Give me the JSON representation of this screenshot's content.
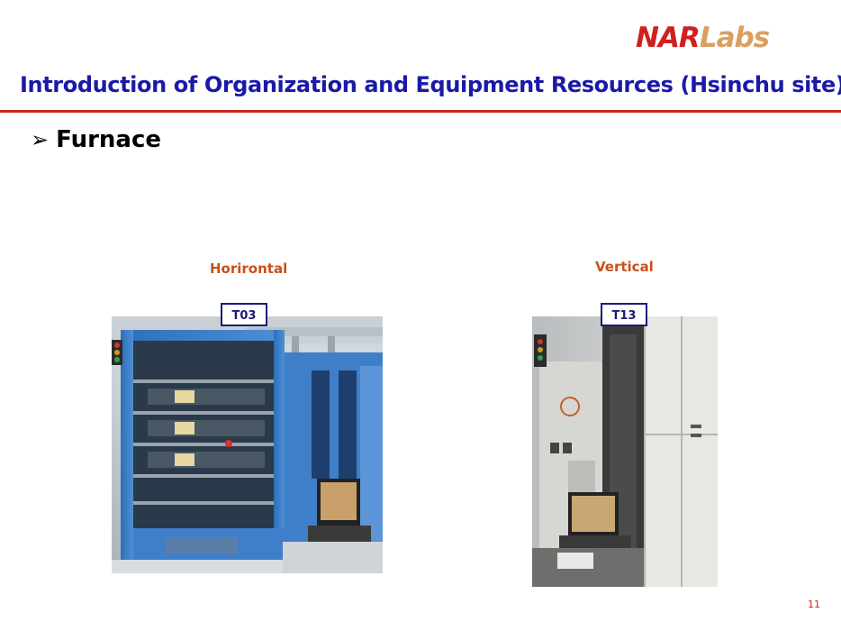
{
  "logo": {
    "part1": "NAR",
    "part2": "Labs"
  },
  "header": {
    "title": "Introduction of Organization and Equipment Resources (Hsinchu site)"
  },
  "section": {
    "bullet_symbol": "➢",
    "heading": "Furnace"
  },
  "figures": [
    {
      "caption": "Horirontal",
      "tag": "T03"
    },
    {
      "caption": "Vertical",
      "tag": "T13"
    }
  ],
  "footer": {
    "page_number": "11"
  },
  "colors": {
    "title": "#1a1aa8",
    "rule": "#c8281f",
    "caption": "#c8501a",
    "tag_border": "#1a1a7a",
    "logo_red": "#d0201f",
    "logo_gold": "#d8a060"
  }
}
